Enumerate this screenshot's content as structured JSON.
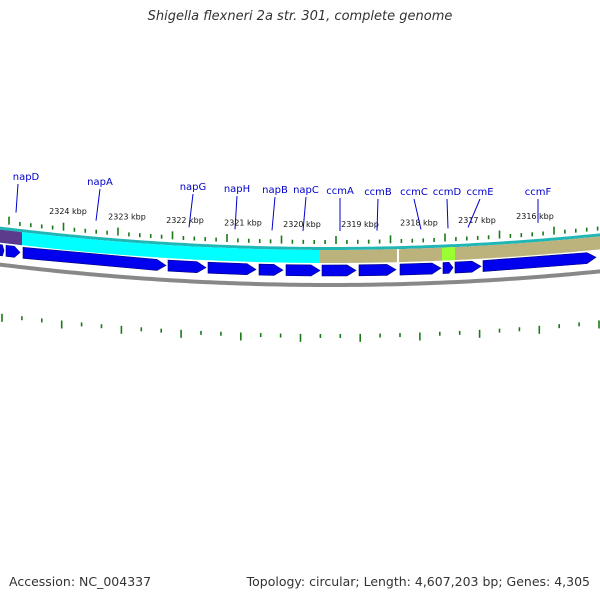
{
  "header": {
    "title": "Shigella flexneri 2a str. 301, complete genome"
  },
  "footer": {
    "accession": "Accession: NC_004337",
    "summary": "Topology: circular; Length: 4,607,203 bp; Genes: 4,305"
  },
  "colors": {
    "gene_label": "#0000cc",
    "tick": "#1a7a1a",
    "cds_arrow": "#0000ee",
    "cds_arrow_stroke": "#00007a",
    "band_cyan": "#00ffff",
    "band_tan": "#bcb27c",
    "band_purple": "#5c3a8c",
    "band_green": "#99ff33",
    "backbone": "#888888",
    "outer_ring": "#20b6b6"
  },
  "kbp_labels": [
    "2324 kbp",
    "2323 kbp",
    "2322 kbp",
    "2321 kbp",
    "2320 kbp",
    "2319 kbp",
    "2318 kbp",
    "2317 kbp",
    "2316 kbp"
  ],
  "genes": [
    {
      "name": "napD"
    },
    {
      "name": "napA"
    },
    {
      "name": "napG"
    },
    {
      "name": "napH"
    },
    {
      "name": "napB"
    },
    {
      "name": "napC"
    },
    {
      "name": "ccmA"
    },
    {
      "name": "ccmB"
    },
    {
      "name": "ccmC"
    },
    {
      "name": "ccmD"
    },
    {
      "name": "ccmE"
    },
    {
      "name": "ccmF"
    }
  ]
}
